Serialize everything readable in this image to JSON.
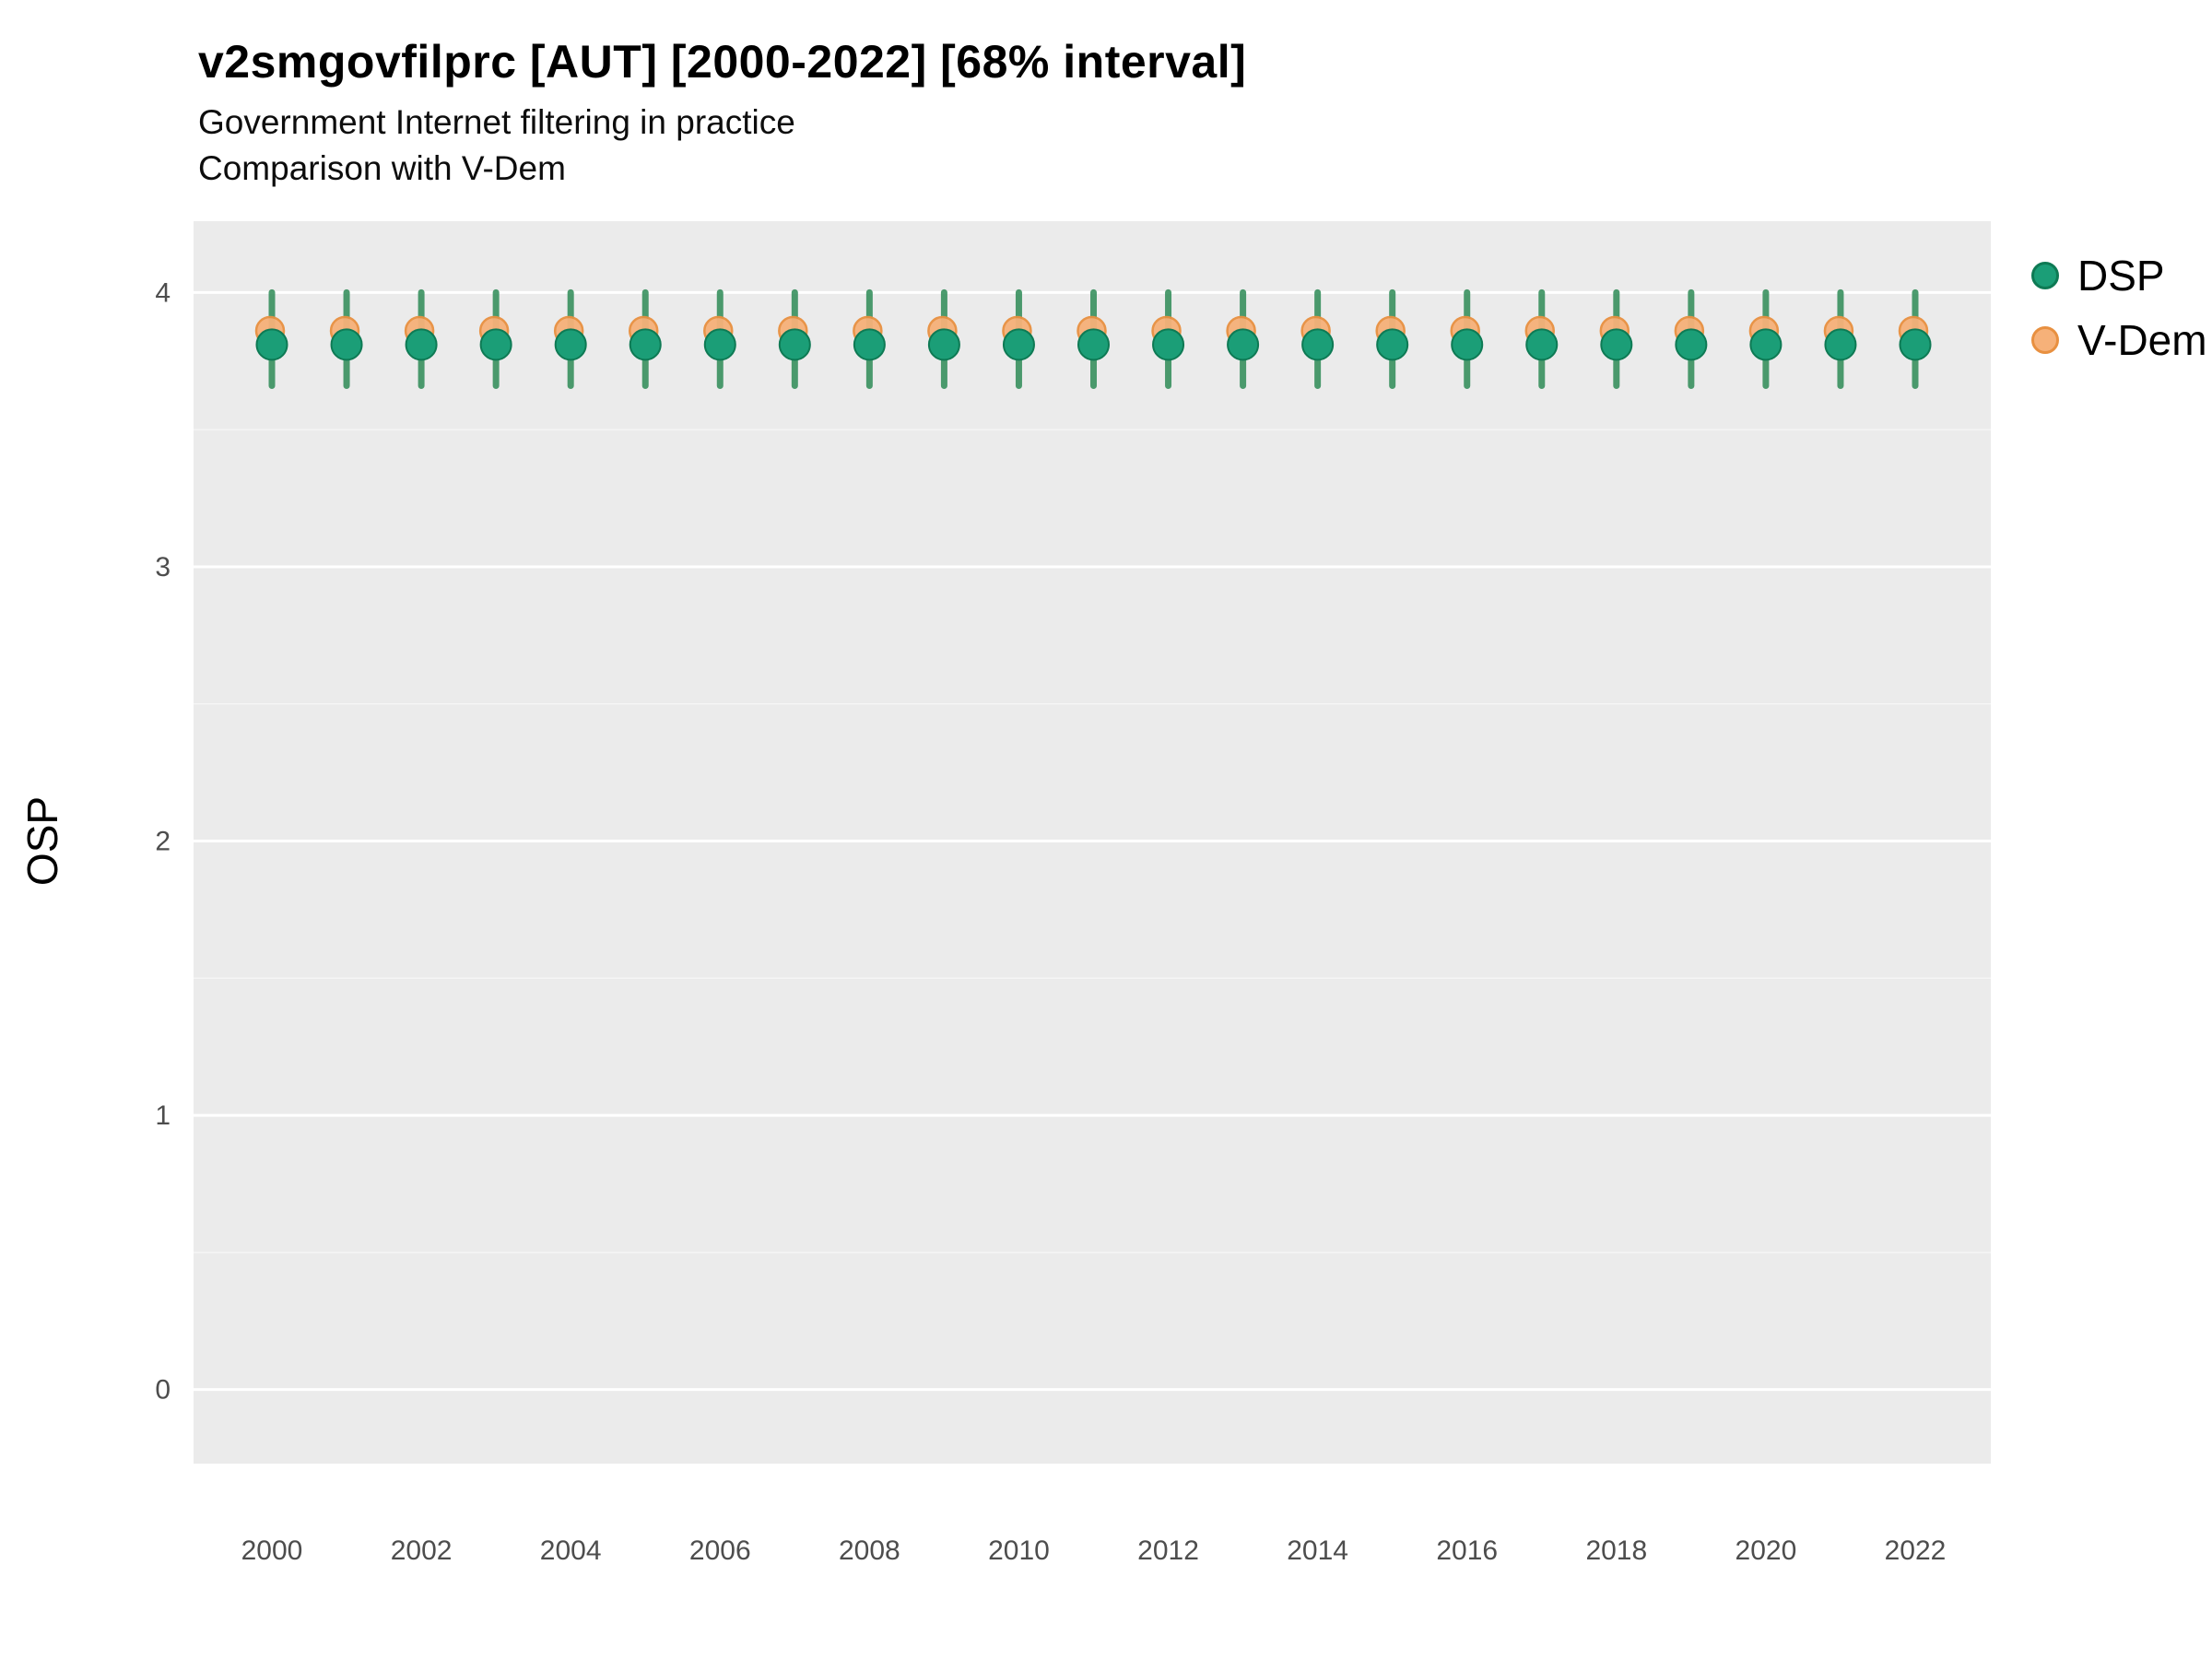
{
  "header": {
    "title": "v2smgovfilprc [AUT] [2000-2022] [68% interval]",
    "subtitle": "Government Internet filtering in practice",
    "subtitle2": "Comparison with V-Dem"
  },
  "chart_data": {
    "type": "scatter",
    "title": "v2smgovfilprc [AUT] [2000-2022] [68% interval]",
    "subtitle": "Government Internet filtering in practice",
    "subtitle2": "Comparison with V-Dem",
    "xlabel": "",
    "ylabel": "OSP",
    "ylim": [
      -0.27,
      4.26
    ],
    "y_ticks": [
      0,
      1,
      2,
      3,
      4
    ],
    "x_ticks": [
      2000,
      2002,
      2004,
      2006,
      2008,
      2010,
      2012,
      2014,
      2016,
      2018,
      2020,
      2022
    ],
    "years": [
      2000,
      2001,
      2002,
      2003,
      2004,
      2005,
      2006,
      2007,
      2008,
      2009,
      2010,
      2011,
      2012,
      2013,
      2014,
      2015,
      2016,
      2017,
      2018,
      2019,
      2020,
      2021,
      2022
    ],
    "grid": true,
    "legend_position": "right",
    "panel_background": "#EBEBEB",
    "grid_color": "#FFFFFF",
    "tick_label_color": "#4d4d4d",
    "series": [
      {
        "name": "DSP",
        "color": "#1b9e77",
        "edge_color": "#0e7a54",
        "interval_color": "#2e8b57",
        "values": [
          3.81,
          3.81,
          3.81,
          3.81,
          3.81,
          3.81,
          3.81,
          3.81,
          3.81,
          3.81,
          3.81,
          3.81,
          3.81,
          3.81,
          3.81,
          3.81,
          3.81,
          3.81,
          3.81,
          3.81,
          3.81,
          3.81,
          3.81
        ],
        "interval_low": [
          3.66,
          3.66,
          3.66,
          3.66,
          3.66,
          3.66,
          3.66,
          3.66,
          3.66,
          3.66,
          3.66,
          3.66,
          3.66,
          3.66,
          3.66,
          3.66,
          3.66,
          3.66,
          3.66,
          3.66,
          3.66,
          3.66,
          3.66
        ],
        "interval_high": [
          4.0,
          4.0,
          4.0,
          4.0,
          4.0,
          4.0,
          4.0,
          4.0,
          4.0,
          4.0,
          4.0,
          4.0,
          4.0,
          4.0,
          4.0,
          4.0,
          4.0,
          4.0,
          4.0,
          4.0,
          4.0,
          4.0,
          4.0
        ]
      },
      {
        "name": "V-Dem",
        "color": "#F6B179",
        "edge_color": "#E89040",
        "values": [
          3.86,
          3.86,
          3.86,
          3.86,
          3.86,
          3.86,
          3.86,
          3.86,
          3.86,
          3.86,
          3.86,
          3.86,
          3.86,
          3.86,
          3.86,
          3.86,
          3.86,
          3.86,
          3.86,
          3.86,
          3.86,
          3.86,
          3.86
        ]
      }
    ]
  }
}
